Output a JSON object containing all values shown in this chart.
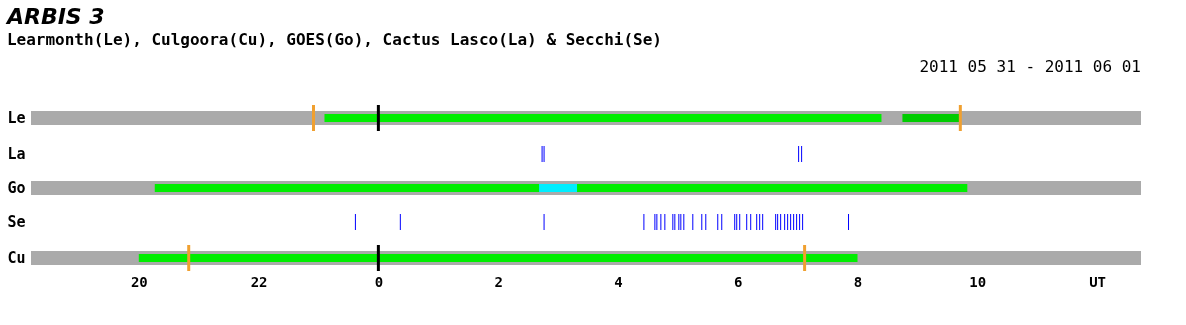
{
  "chart_data": [
    {
      "type": "bar",
      "orientation": "horizontal",
      "title": "ARBIS 3",
      "subtitle": "Learmonth(Le), Culgoora(Cu), GOES(Go), Cactus Lasco(La) & Secchi(Se)",
      "annotations": [
        "2011 05 31 - 2011 06 01"
      ],
      "categories": [
        "Le"
      ],
      "xlim": [
        "2011-05-31T18:12",
        "2011-06-01T12:44"
      ],
      "tick_labels": "y",
      "values": [
        null
      ],
      "bands": [
        {
          "axis": "x",
          "from": "2011-05-31T18:12",
          "to": "2011-06-01T12:44",
          "color": "#aaaaaa"
        },
        {
          "axis": "x",
          "from": "2011-05-31T23:06",
          "to": "2011-06-01T08:24",
          "color": "#00ee00"
        },
        {
          "axis": "x",
          "from": "2011-06-01T08:45",
          "to": "2011-06-01T09:43",
          "color": "#00cc00"
        }
      ],
      "ref_lines": [
        {
          "axis": "x",
          "value": "2011-05-31T22:55",
          "color": "#f0a030"
        },
        {
          "axis": "x",
          "value": "2011-06-01T00:00",
          "color": "#000000"
        },
        {
          "axis": "x",
          "value": "2011-06-01T09:43",
          "color": "#f0a030"
        }
      ]
    },
    {
      "type": "bar",
      "orientation": "horizontal",
      "categories": [
        "La"
      ],
      "xlim": [
        "2011-05-31T18:12",
        "2011-06-01T12:44"
      ],
      "tick_labels": "y",
      "values": [
        null
      ],
      "ref_lines": [
        {
          "axis": "x",
          "value": "2011-06-01T02:44",
          "color": "#0000ff"
        },
        {
          "axis": "x",
          "value": "2011-06-01T02:46",
          "color": "#0000ff"
        },
        {
          "axis": "x",
          "value": "2011-06-01T07:01",
          "color": "#0000ff"
        },
        {
          "axis": "x",
          "value": "2011-06-01T07:04",
          "color": "#0000ff"
        }
      ]
    },
    {
      "type": "bar",
      "orientation": "horizontal",
      "categories": [
        "Go"
      ],
      "xlim": [
        "2011-05-31T18:12",
        "2011-06-01T12:44"
      ],
      "tick_labels": "y",
      "values": [
        null
      ],
      "bands": [
        {
          "axis": "x",
          "from": "2011-05-31T18:12",
          "to": "2011-06-01T12:44",
          "color": "#aaaaaa"
        },
        {
          "axis": "x",
          "from": "2011-05-31T20:16",
          "to": "2011-06-01T09:50",
          "color": "#00ee00"
        },
        {
          "axis": "x",
          "from": "2011-06-01T02:41",
          "to": "2011-06-01T03:19",
          "color": "#00eeff"
        }
      ]
    },
    {
      "type": "bar",
      "orientation": "horizontal",
      "categories": [
        "Se"
      ],
      "xlim": [
        "2011-05-31T18:12",
        "2011-06-01T12:44"
      ],
      "tick_labels": "y",
      "values": [
        null
      ],
      "ref_lines": [
        {
          "axis": "x",
          "value": "2011-05-31T23:37",
          "color": "#0000ff"
        },
        {
          "axis": "x",
          "value": "2011-06-01T00:22",
          "color": "#0000ff"
        },
        {
          "axis": "x",
          "value": "2011-06-01T02:46",
          "color": "#0000ff"
        },
        {
          "axis": "x",
          "value": "2011-06-01T04:26",
          "color": "#0000ff"
        },
        {
          "axis": "x",
          "value": "2011-06-01T04:37",
          "color": "#0000ff"
        },
        {
          "axis": "x",
          "value": "2011-06-01T04:39",
          "color": "#0000ff"
        },
        {
          "axis": "x",
          "value": "2011-06-01T04:43",
          "color": "#0000ff"
        },
        {
          "axis": "x",
          "value": "2011-06-01T04:47",
          "color": "#0000ff"
        },
        {
          "axis": "x",
          "value": "2011-06-01T04:55",
          "color": "#0000ff"
        },
        {
          "axis": "x",
          "value": "2011-06-01T04:57",
          "color": "#0000ff"
        },
        {
          "axis": "x",
          "value": "2011-06-01T05:01",
          "color": "#0000ff"
        },
        {
          "axis": "x",
          "value": "2011-06-01T05:03",
          "color": "#0000ff"
        },
        {
          "axis": "x",
          "value": "2011-06-01T05:06",
          "color": "#0000ff"
        },
        {
          "axis": "x",
          "value": "2011-06-01T05:15",
          "color": "#0000ff"
        },
        {
          "axis": "x",
          "value": "2011-06-01T05:24",
          "color": "#0000ff"
        },
        {
          "axis": "x",
          "value": "2011-06-01T05:28",
          "color": "#0000ff"
        },
        {
          "axis": "x",
          "value": "2011-06-01T05:40",
          "color": "#0000ff"
        },
        {
          "axis": "x",
          "value": "2011-06-01T05:44",
          "color": "#0000ff"
        },
        {
          "axis": "x",
          "value": "2011-06-01T05:57",
          "color": "#0000ff"
        },
        {
          "axis": "x",
          "value": "2011-06-01T05:59",
          "color": "#0000ff"
        },
        {
          "axis": "x",
          "value": "2011-06-01T06:02",
          "color": "#0000ff"
        },
        {
          "axis": "x",
          "value": "2011-06-01T06:09",
          "color": "#0000ff"
        },
        {
          "axis": "x",
          "value": "2011-06-01T06:13",
          "color": "#0000ff"
        },
        {
          "axis": "x",
          "value": "2011-06-01T06:19",
          "color": "#0000ff"
        },
        {
          "axis": "x",
          "value": "2011-06-01T06:22",
          "color": "#0000ff"
        },
        {
          "axis": "x",
          "value": "2011-06-01T06:25",
          "color": "#0000ff"
        },
        {
          "axis": "x",
          "value": "2011-06-01T06:38",
          "color": "#0000ff"
        },
        {
          "axis": "x",
          "value": "2011-06-01T06:40",
          "color": "#0000ff"
        },
        {
          "axis": "x",
          "value": "2011-06-01T06:43",
          "color": "#0000ff"
        },
        {
          "axis": "x",
          "value": "2011-06-01T06:47",
          "color": "#0000ff"
        },
        {
          "axis": "x",
          "value": "2011-06-01T06:50",
          "color": "#0000ff"
        },
        {
          "axis": "x",
          "value": "2011-06-01T06:53",
          "color": "#0000ff"
        },
        {
          "axis": "x",
          "value": "2011-06-01T06:56",
          "color": "#0000ff"
        },
        {
          "axis": "x",
          "value": "2011-06-01T06:59",
          "color": "#0000ff"
        },
        {
          "axis": "x",
          "value": "2011-06-01T07:02",
          "color": "#0000ff"
        },
        {
          "axis": "x",
          "value": "2011-06-01T07:05",
          "color": "#0000ff"
        },
        {
          "axis": "x",
          "value": "2011-06-01T07:51",
          "color": "#0000ff"
        }
      ]
    },
    {
      "type": "bar",
      "orientation": "horizontal",
      "categories": [
        "Cu"
      ],
      "xlim": [
        "2011-05-31T18:12",
        "2011-06-01T12:44"
      ],
      "xticks": [
        {
          "value": "2011-05-31T20:00",
          "label": "20"
        },
        {
          "value": "2011-05-31T22:00",
          "label": "22"
        },
        {
          "value": "2011-06-01T00:00",
          "label": "0"
        },
        {
          "value": "2011-06-01T02:00",
          "label": "2"
        },
        {
          "value": "2011-06-01T04:00",
          "label": "4"
        },
        {
          "value": "2011-06-01T06:00",
          "label": "6"
        },
        {
          "value": "2011-06-01T08:00",
          "label": "8"
        },
        {
          "value": "2011-06-01T10:00",
          "label": "10"
        },
        {
          "value": "2011-06-01T12:00",
          "label": "UT"
        }
      ],
      "values": [
        null
      ],
      "bands": [
        {
          "axis": "x",
          "from": "2011-05-31T18:12",
          "to": "2011-06-01T12:44",
          "color": "#aaaaaa"
        },
        {
          "axis": "x",
          "from": "2011-05-31T20:00",
          "to": "2011-06-01T08:00",
          "color": "#00ee00"
        }
      ],
      "ref_lines": [
        {
          "axis": "x",
          "value": "2011-05-31T20:50",
          "color": "#f0a030"
        },
        {
          "axis": "x",
          "value": "2011-06-01T00:00",
          "color": "#000000"
        },
        {
          "axis": "x",
          "value": "2011-06-01T07:07",
          "color": "#f0a030"
        }
      ]
    }
  ]
}
